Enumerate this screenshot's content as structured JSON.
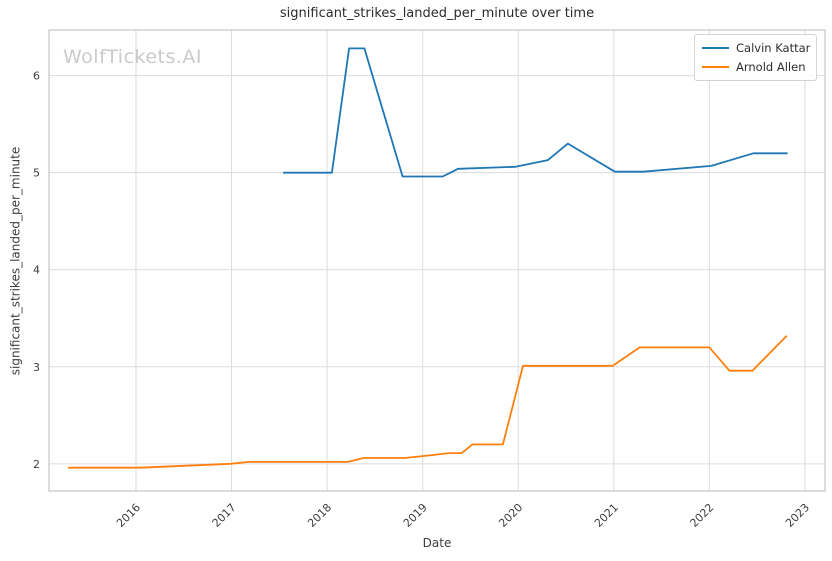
{
  "chart_data": {
    "type": "line",
    "title": "significant_strikes_landed_per_minute over time",
    "xlabel": "Date",
    "ylabel": "significant_strikes_landed_per_minute",
    "watermark": "WolfTickets.AI",
    "grid": true,
    "legend_position": "upper right",
    "xlim": [
      2015.09,
      2023.21
    ],
    "ylim": [
      1.72,
      6.47
    ],
    "xticks": [
      2016,
      2017,
      2018,
      2019,
      2020,
      2021,
      2022,
      2023
    ],
    "yticks": [
      2,
      3,
      4,
      5,
      6
    ],
    "series": [
      {
        "name": "Calvin Kattar",
        "color": "#1f77b4",
        "x": [
          2017.54,
          2018.05,
          2018.23,
          2018.39,
          2018.79,
          2019.21,
          2019.37,
          2019.97,
          2020.31,
          2020.52,
          2021.01,
          2021.31,
          2022.02,
          2022.46,
          2022.82
        ],
        "y": [
          5.0,
          5.0,
          6.28,
          6.28,
          4.96,
          4.96,
          5.04,
          5.06,
          5.13,
          5.3,
          5.01,
          5.01,
          5.07,
          5.2,
          5.2
        ]
      },
      {
        "name": "Arnold Allen",
        "color": "#ff7f0e",
        "x": [
          2015.29,
          2016.04,
          2016.99,
          2017.18,
          2018.22,
          2018.38,
          2018.81,
          2019.0,
          2019.28,
          2019.41,
          2019.52,
          2019.84,
          2020.05,
          2020.99,
          2021.27,
          2022.0,
          2022.21,
          2022.45,
          2022.81
        ],
        "y": [
          1.96,
          1.96,
          2.0,
          2.02,
          2.02,
          2.06,
          2.06,
          2.08,
          2.11,
          2.11,
          2.2,
          2.2,
          3.01,
          3.01,
          3.2,
          3.2,
          2.96,
          2.96,
          3.32
        ]
      }
    ]
  }
}
